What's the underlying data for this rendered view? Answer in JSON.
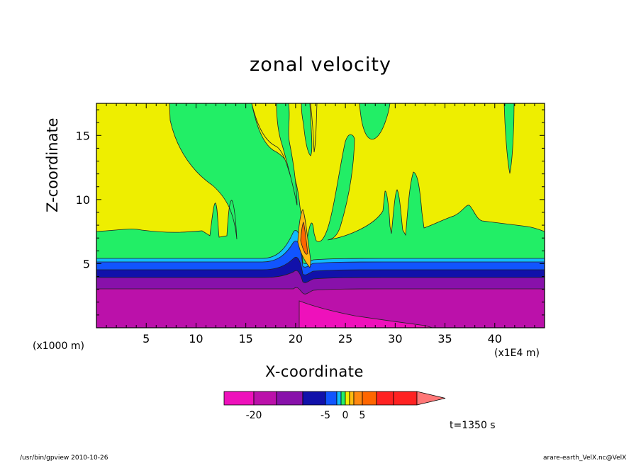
{
  "chart_data": {
    "type": "heatmap",
    "title": "zonal velocity",
    "xlabel": "X-coordinate",
    "ylabel": "Z-coordinate",
    "x_unit": "(x1E4 m)",
    "y_unit": "(x1000 m)",
    "x_ticks": [
      5,
      10,
      15,
      20,
      25,
      30,
      35,
      40
    ],
    "y_ticks": [
      5,
      10,
      15
    ],
    "xlim": [
      0,
      45
    ],
    "ylim": [
      0,
      17.5
    ],
    "colorbar": {
      "levels": [
        -25,
        -20,
        -15,
        -10,
        -5,
        -3,
        -1,
        0,
        1,
        3,
        5,
        10,
        15
      ],
      "colors": [
        "#ee11bb",
        "#bb11aa",
        "#8811aa",
        "#1111aa",
        "#1155ff",
        "#11bbff",
        "#22ee66",
        "#eeee00",
        "#ffbb11",
        "#ff8811",
        "#ff6600",
        "#ff2222",
        "#ff7777"
      ],
      "tick_labels": [
        {
          "value": -20,
          "label": "-20"
        },
        {
          "value": -5,
          "label": "-5"
        },
        {
          "value": 0,
          "label": "0"
        },
        {
          "value": 5,
          "label": "5"
        }
      ]
    },
    "time_label": "t=1350 s",
    "grid": false
  },
  "footer": {
    "left": "/usr/bin/gpview   2010-10-26",
    "right": "arare-earth_VelX.nc@VelX"
  }
}
